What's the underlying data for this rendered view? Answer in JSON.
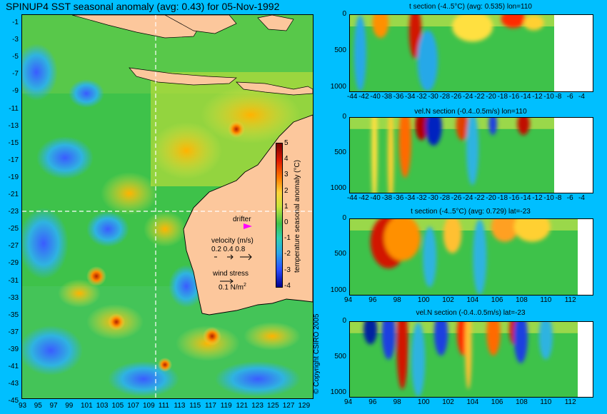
{
  "map": {
    "title": "SPINUP4 SST seasonal anomaly (avg: 0.43) for 05-Nov-1992",
    "y_ticks": [
      "-1",
      "-3",
      "-5",
      "-7",
      "-9",
      "-11",
      "-13",
      "-15",
      "-17",
      "-19",
      "-21",
      "-23",
      "-25",
      "-27",
      "-29",
      "-31",
      "-33",
      "-35",
      "-37",
      "-39",
      "-41",
      "-43",
      "-45"
    ],
    "x_ticks": [
      "93",
      "95",
      "97",
      "99",
      "101",
      "103",
      "105",
      "107",
      "109",
      "111",
      "113",
      "115",
      "117",
      "119",
      "121",
      "123",
      "125",
      "127",
      "129"
    ],
    "drifter_label": "drifter",
    "velocity_label": "velocity (m/s)",
    "velocity_scale": "0.2 0.4 0.8",
    "wind_label": "wind stress",
    "wind_scale": "0.1 N/m",
    "wind_scale_exp": "2",
    "colorbar_label": "temperature seasonal anomaly (°C)",
    "colorbar_ticks": [
      "5",
      "4",
      "3",
      "2",
      "1",
      "0",
      "-1",
      "-2",
      "-3",
      "-4"
    ],
    "copyright": "© Copyright CSIRO 2005"
  },
  "sections": [
    {
      "title": "t section (-4..5°C) (avg: 0.535) lon=110",
      "y_ticks": [
        "0",
        "500",
        "1000"
      ],
      "x_ticks": [
        "-44",
        "-42",
        "-40",
        "-38",
        "-36",
        "-34",
        "-32",
        "-30",
        "-28",
        "-26",
        "-24",
        "-22",
        "-20",
        "-18",
        "-16",
        "-14",
        "-12",
        "-10",
        "-8",
        "-6",
        "-4"
      ]
    },
    {
      "title": "vel.N section (-0.4..0.5m/s) lon=110",
      "y_ticks": [
        "0",
        "500",
        "1000"
      ],
      "x_ticks": [
        "-44",
        "-42",
        "-40",
        "-38",
        "-36",
        "-34",
        "-32",
        "-30",
        "-28",
        "-26",
        "-24",
        "-22",
        "-20",
        "-18",
        "-16",
        "-14",
        "-12",
        "-10",
        "-8",
        "-6",
        "-4"
      ]
    },
    {
      "title": "t section (-4..5°C) (avg: 0.729) lat=-23",
      "y_ticks": [
        "0",
        "500",
        "1000"
      ],
      "x_ticks": [
        "94",
        "96",
        "98",
        "100",
        "102",
        "104",
        "106",
        "108",
        "110",
        "112"
      ]
    },
    {
      "title": "vel.N section (-0.4..0.5m/s) lat=-23",
      "y_ticks": [
        "0",
        "500",
        "1000"
      ],
      "x_ticks": [
        "94",
        "96",
        "98",
        "100",
        "102",
        "104",
        "106",
        "108",
        "110",
        "112"
      ]
    }
  ],
  "chart_data": [
    {
      "type": "heatmap",
      "title": "SPINUP4 SST seasonal anomaly (avg: 0.43) for 05-Nov-1992",
      "xlim": [
        93,
        130
      ],
      "ylim": [
        -45,
        0
      ],
      "colorbar_range": [
        -4,
        5
      ],
      "crosshair": {
        "lon": 110,
        "lat": -23
      }
    },
    {
      "type": "heatmap",
      "title": "t section (-4..5°C) (avg: 0.535) lon=110",
      "xlim": [
        -45,
        -3
      ],
      "ylim": [
        1050,
        0
      ]
    },
    {
      "type": "heatmap",
      "title": "vel.N section (-0.4..0.5m/s) lon=110",
      "xlim": [
        -45,
        -3
      ],
      "ylim": [
        1050,
        0
      ]
    },
    {
      "type": "heatmap",
      "title": "t section (-4..5°C) (avg: 0.729) lat=-23",
      "xlim": [
        93,
        114
      ],
      "ylim": [
        1050,
        0
      ]
    },
    {
      "type": "heatmap",
      "title": "vel.N section (-0.4..0.5m/s) lat=-23",
      "xlim": [
        93,
        114
      ],
      "ylim": [
        1050,
        0
      ]
    }
  ]
}
